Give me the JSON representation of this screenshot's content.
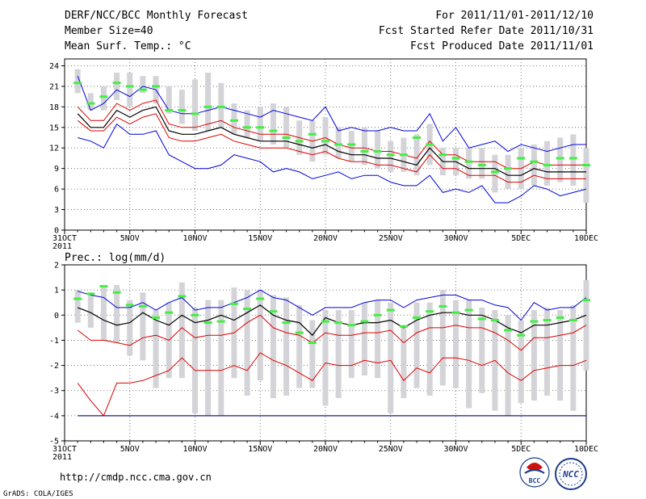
{
  "header": {
    "title": "DERF/NCC/BCC Monthly Forecast",
    "member_size": "Member Size=40",
    "variable": "Mean Surf. Temp.: °C",
    "period": "For 2011/11/01-2011/12/10",
    "start_date": "Fcst Started Refer Date 2011/10/31",
    "produced_date": "Fcst Produced Date 2011/11/01"
  },
  "footer": {
    "url": "http://cmdp.ncc.cma.gov.cn",
    "credit": "GrADS: COLA/IGES",
    "logo_bcc": "BCC",
    "logo_ncc": "NCC"
  },
  "colors": {
    "observed": "#44ee44",
    "spread_box": "#d4d4d8",
    "mean": "#000000",
    "std": "#dd0000",
    "extreme": "#0000dd",
    "baseline": "#1a1a8a"
  },
  "chart_data": [
    {
      "type": "line",
      "title": "Mean Surf. Temp.: °C",
      "xlabel": "",
      "ylabel": "°C",
      "ylim": [
        0,
        25
      ],
      "yticks": [
        0,
        3,
        6,
        9,
        12,
        15,
        18,
        21,
        24
      ],
      "grid": "dotted",
      "x_tick_labels": [
        "31OCT",
        "5NOV",
        "10NOV",
        "15NOV",
        "20NOV",
        "25NOV",
        "30NOV",
        "5DEC",
        "10DEC"
      ],
      "x_tick_day_index": [
        0,
        5,
        10,
        15,
        20,
        25,
        30,
        35,
        40
      ],
      "year_label": "2011",
      "days": [
        1,
        2,
        3,
        4,
        5,
        6,
        7,
        8,
        9,
        10,
        11,
        12,
        13,
        14,
        15,
        16,
        17,
        18,
        19,
        20,
        21,
        22,
        23,
        24,
        25,
        26,
        27,
        28,
        29,
        30,
        31,
        32,
        33,
        34,
        35,
        36,
        37,
        38,
        39,
        40
      ],
      "series": [
        {
          "name": "max",
          "values": [
            22.5,
            17.5,
            18.5,
            20.5,
            19.5,
            21.0,
            20.5,
            17.5,
            17.0,
            17.0,
            17.5,
            18.0,
            17.5,
            17.0,
            16.5,
            17.5,
            17.0,
            16.5,
            16.0,
            18.0,
            14.5,
            15.0,
            14.5,
            14.5,
            15.0,
            14.5,
            14.5,
            17.0,
            13.0,
            15.0,
            12.0,
            12.5,
            13.0,
            11.5,
            12.5,
            12.0,
            11.5,
            12.0,
            12.5,
            12.5
          ]
        },
        {
          "name": "upper_std",
          "values": [
            18.0,
            16.0,
            16.0,
            18.5,
            17.5,
            18.5,
            19.0,
            15.5,
            15.0,
            15.0,
            15.5,
            16.0,
            15.0,
            14.5,
            14.0,
            14.0,
            14.0,
            13.5,
            13.0,
            13.5,
            12.5,
            12.0,
            12.0,
            11.5,
            11.5,
            11.0,
            10.5,
            13.0,
            11.0,
            11.0,
            10.0,
            10.0,
            10.0,
            9.0,
            9.0,
            10.0,
            9.5,
            9.5,
            9.5,
            9.5
          ]
        },
        {
          "name": "mean",
          "values": [
            17.0,
            15.0,
            15.0,
            17.5,
            16.5,
            17.5,
            18.0,
            14.5,
            14.0,
            14.0,
            14.5,
            15.0,
            14.0,
            13.5,
            13.0,
            13.0,
            13.0,
            12.5,
            12.0,
            12.5,
            11.5,
            11.0,
            11.0,
            10.5,
            10.5,
            10.0,
            9.5,
            12.0,
            10.0,
            10.0,
            9.0,
            9.0,
            9.0,
            8.0,
            8.0,
            9.0,
            8.5,
            8.5,
            8.5,
            8.5
          ]
        },
        {
          "name": "lower_std",
          "values": [
            16.0,
            14.5,
            14.5,
            16.5,
            15.5,
            16.5,
            17.0,
            13.5,
            13.0,
            13.0,
            13.5,
            14.0,
            13.0,
            12.5,
            12.0,
            12.0,
            12.0,
            11.5,
            11.0,
            11.5,
            10.5,
            10.0,
            10.0,
            9.5,
            9.5,
            9.0,
            8.5,
            11.0,
            9.0,
            9.0,
            8.0,
            8.0,
            8.0,
            7.0,
            7.0,
            8.0,
            7.5,
            7.5,
            7.5,
            7.5
          ]
        },
        {
          "name": "min",
          "values": [
            13.5,
            13.0,
            12.0,
            15.5,
            14.0,
            14.0,
            14.5,
            11.0,
            10.0,
            9.0,
            9.0,
            9.5,
            11.0,
            10.5,
            10.0,
            8.5,
            9.0,
            8.5,
            7.5,
            8.0,
            8.5,
            7.5,
            8.0,
            8.0,
            7.0,
            6.5,
            6.5,
            8.0,
            5.5,
            6.0,
            5.5,
            6.5,
            4.0,
            4.0,
            5.0,
            6.5,
            6.0,
            5.0,
            5.5,
            6.0
          ]
        },
        {
          "name": "observed",
          "values": [
            21.5,
            18.5,
            19.5,
            21.5,
            21.0,
            20.5,
            21.0,
            17.5,
            17.5,
            17.0,
            18.0,
            18.0,
            16.0,
            15.0,
            15.0,
            14.5,
            13.5,
            13.0,
            14.0,
            13.0,
            12.5,
            12.5,
            11.5,
            11.5,
            11.0,
            11.0,
            13.5,
            12.5,
            11.0,
            10.5,
            10.0,
            9.5,
            8.5,
            9.0,
            10.5,
            10.0,
            9.5,
            10.5,
            10.5,
            9.5
          ]
        }
      ],
      "spread_boxes": [
        [
          20,
          23.5
        ],
        [
          17.5,
          20
        ],
        [
          17.5,
          21
        ],
        [
          19,
          23
        ],
        [
          18,
          23
        ],
        [
          20,
          22.5
        ],
        [
          18.5,
          22.5
        ],
        [
          17,
          21
        ],
        [
          15.5,
          20.5
        ],
        [
          14.5,
          22
        ],
        [
          14.5,
          23
        ],
        [
          15,
          21.5
        ],
        [
          14,
          18.5
        ],
        [
          13.5,
          17.5
        ],
        [
          13,
          18
        ],
        [
          12.5,
          18.5
        ],
        [
          12,
          18
        ],
        [
          11,
          16
        ],
        [
          10,
          16
        ],
        [
          11,
          16.5
        ],
        [
          10.5,
          15
        ],
        [
          10,
          14.5
        ],
        [
          9.5,
          15
        ],
        [
          9,
          14.5
        ],
        [
          8.5,
          13
        ],
        [
          8.5,
          13.5
        ],
        [
          8,
          14
        ],
        [
          9.5,
          15.5
        ],
        [
          8,
          12
        ],
        [
          8,
          12
        ],
        [
          7.5,
          12
        ],
        [
          7.5,
          12
        ],
        [
          5.5,
          11
        ],
        [
          6,
          11
        ],
        [
          6,
          12
        ],
        [
          6.5,
          12.5
        ],
        [
          6.5,
          13
        ],
        [
          7,
          13.5
        ],
        [
          6.5,
          14
        ],
        [
          4,
          12
        ]
      ]
    },
    {
      "type": "line",
      "title": "Prec.: log(mm/d)",
      "xlabel": "",
      "ylabel": "log(mm/d)",
      "ylim": [
        -5,
        2
      ],
      "yticks": [
        -5,
        -4,
        -3,
        -2,
        -1,
        0,
        1,
        2
      ],
      "grid": "dotted",
      "x_tick_labels": [
        "31OCT",
        "5NOV",
        "10NOV",
        "15NOV",
        "20NOV",
        "25NOV",
        "30NOV",
        "5DEC",
        "10DEC"
      ],
      "x_tick_day_index": [
        0,
        5,
        10,
        15,
        20,
        25,
        30,
        35,
        40
      ],
      "year_label": "2011",
      "days": [
        1,
        2,
        3,
        4,
        5,
        6,
        7,
        8,
        9,
        10,
        11,
        12,
        13,
        14,
        15,
        16,
        17,
        18,
        19,
        20,
        21,
        22,
        23,
        24,
        25,
        26,
        27,
        28,
        29,
        30,
        31,
        32,
        33,
        34,
        35,
        36,
        37,
        38,
        39,
        40
      ],
      "series": [
        {
          "name": "max",
          "values": [
            0.95,
            0.8,
            0.7,
            0.3,
            0.3,
            0.5,
            0.2,
            0.5,
            0.7,
            0.2,
            0.3,
            0.3,
            0.5,
            0.7,
            1.0,
            0.7,
            0.6,
            0.3,
            0.0,
            0.3,
            0.3,
            0.3,
            0.5,
            0.6,
            0.6,
            0.3,
            0.6,
            0.7,
            0.8,
            0.8,
            0.6,
            0.6,
            0.4,
            0.3,
            -0.2,
            0.5,
            0.2,
            0.3,
            0.3,
            0.7
          ]
        },
        {
          "name": "mean",
          "values": [
            0.3,
            0.1,
            -0.2,
            -0.4,
            -0.3,
            0.1,
            -0.2,
            -0.4,
            0.0,
            -0.3,
            -0.2,
            0.0,
            -0.2,
            0.1,
            0.4,
            0.0,
            -0.2,
            -0.3,
            -0.8,
            -0.1,
            -0.3,
            -0.4,
            -0.3,
            -0.3,
            -0.2,
            -0.5,
            -0.2,
            0.0,
            0.1,
            0.1,
            0.0,
            0.0,
            -0.2,
            -0.5,
            -0.7,
            -0.4,
            -0.4,
            -0.3,
            -0.2,
            0.0
          ]
        },
        {
          "name": "upper_std_drawn",
          "values": [
            -0.6,
            -1.0,
            -1.0,
            -1.1,
            -1.2,
            -0.9,
            -0.8,
            -1.0,
            -0.5,
            -0.9,
            -0.8,
            -0.8,
            -0.7,
            -0.3,
            0.0,
            -0.5,
            -0.7,
            -0.8,
            -1.1,
            -0.7,
            -0.8,
            -0.8,
            -0.7,
            -0.7,
            -0.6,
            -1.1,
            -0.7,
            -0.5,
            -0.5,
            -0.4,
            -0.5,
            -0.5,
            -0.7,
            -1.0,
            -1.4,
            -0.9,
            -0.9,
            -0.8,
            -0.7,
            -0.4
          ]
        },
        {
          "name": "lower_std",
          "values": [
            -2.7,
            -3.4,
            -4.0,
            -2.7,
            -2.7,
            -2.6,
            -2.4,
            -2.2,
            -1.7,
            -2.2,
            -2.2,
            -2.2,
            -2.0,
            -2.2,
            -1.5,
            -1.8,
            -2.0,
            -2.3,
            -2.6,
            -1.9,
            -2.0,
            -2.0,
            -1.8,
            -1.9,
            -1.8,
            -2.6,
            -2.1,
            -2.3,
            -1.7,
            -1.7,
            -1.8,
            -2.0,
            -1.8,
            -2.3,
            -2.6,
            -2.2,
            -2.1,
            -2.0,
            -2.0,
            -1.8
          ]
        },
        {
          "name": "baseline",
          "values": [
            -4,
            -4,
            -4,
            -4,
            -4,
            -4,
            -4,
            -4,
            -4,
            -4,
            -4,
            -4,
            -4,
            -4,
            -4,
            -4,
            -4,
            -4,
            -4,
            -4,
            -4,
            -4,
            -4,
            -4,
            -4,
            -4,
            -4,
            -4,
            -4,
            -4,
            -4,
            -4,
            -4,
            -4,
            -4,
            -4,
            -4,
            -4,
            -4,
            -4
          ]
        },
        {
          "name": "observed",
          "values": [
            0.65,
            0.85,
            1.15,
            0.9,
            0.4,
            0.35,
            -0.1,
            0.1,
            0.75,
            0.0,
            -0.3,
            -0.25,
            0.45,
            0.25,
            0.65,
            0.15,
            -0.3,
            -0.7,
            -1.1,
            -0.25,
            -0.3,
            -0.4,
            -0.25,
            0.0,
            0.2,
            -0.45,
            -0.1,
            0.15,
            0.35,
            0.1,
            0.2,
            -0.15,
            -0.2,
            -0.6,
            -0.8,
            -0.25,
            -0.2,
            -0.1,
            -0.2,
            0.6
          ]
        }
      ],
      "spread_boxes": [
        [
          -0.3,
          1.0
        ],
        [
          -0.5,
          0.8
        ],
        [
          -1.0,
          1.1
        ],
        [
          -1.1,
          1.2
        ],
        [
          -1.6,
          0.6
        ],
        [
          -1.8,
          0.9
        ],
        [
          -2.9,
          0.2
        ],
        [
          -2.5,
          0.5
        ],
        [
          -2.5,
          1.3
        ],
        [
          -3.9,
          0.3
        ],
        [
          -4.0,
          0.6
        ],
        [
          -4.0,
          0.6
        ],
        [
          -2.5,
          1.1
        ],
        [
          -3.2,
          1.0
        ],
        [
          -2.6,
          1.0
        ],
        [
          -3.3,
          0.8
        ],
        [
          -3.2,
          0.7
        ],
        [
          -2.9,
          0.4
        ],
        [
          -2.9,
          -0.2
        ],
        [
          -3.6,
          0.2
        ],
        [
          -3.3,
          0.2
        ],
        [
          -2.5,
          0.2
        ],
        [
          -2.4,
          0.5
        ],
        [
          -2.5,
          0.6
        ],
        [
          -3.9,
          0.5
        ],
        [
          -3.3,
          -0.4
        ],
        [
          -2.9,
          0.5
        ],
        [
          -3.2,
          0.5
        ],
        [
          -2.8,
          1.0
        ],
        [
          -2.9,
          0.6
        ],
        [
          -3.7,
          0.6
        ],
        [
          -3.1,
          0.3
        ],
        [
          -3.8,
          0.2
        ],
        [
          -4.0,
          0.0
        ],
        [
          -3.5,
          -0.2
        ],
        [
          -3.4,
          0.2
        ],
        [
          -3.2,
          0.3
        ],
        [
          -3.4,
          0.2
        ],
        [
          -3.8,
          0.4
        ],
        [
          -2.2,
          1.4
        ]
      ]
    }
  ]
}
